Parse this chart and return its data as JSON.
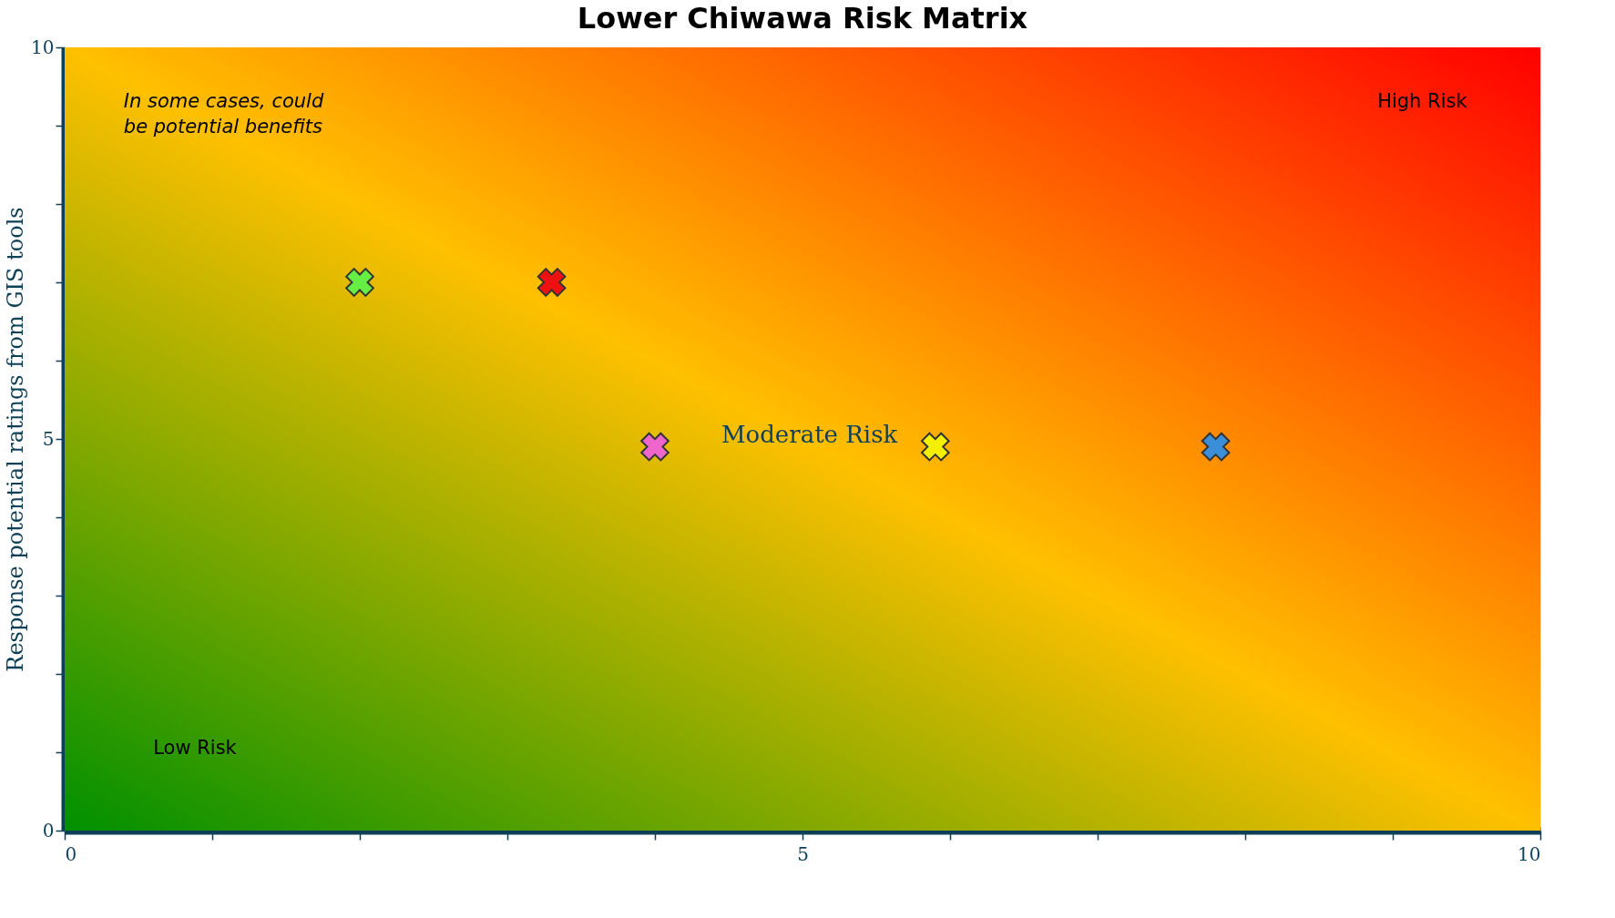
{
  "chart_data": {
    "type": "scatter",
    "title": "Lower Chiwawa Risk Matrix",
    "ylabel": "Response potential ratings from GIS tools",
    "x": [
      2.0,
      3.3,
      4.0,
      5.9,
      7.8
    ],
    "values": [
      7.0,
      7.0,
      4.9,
      4.9,
      4.9
    ],
    "colors": [
      "#66ee44",
      "#ee1111",
      "#ee66cc",
      "#f4f000",
      "#3b8ed8"
    ],
    "marker": "cross",
    "xlim": [
      0,
      10
    ],
    "ylim": [
      0,
      10
    ],
    "xticks": [
      0,
      {
        "value": 1,
        "label": null
      },
      {
        "value": 2,
        "label": null
      },
      {
        "value": 3,
        "label": null
      },
      {
        "value": 4,
        "label": null
      },
      5,
      {
        "value": 6,
        "label": null
      },
      {
        "value": 7,
        "label": null
      },
      {
        "value": 8,
        "label": null
      },
      {
        "value": 9,
        "label": null
      },
      10
    ],
    "yticks": [
      0,
      {
        "value": 1,
        "label": null
      },
      {
        "value": 2,
        "label": null
      },
      {
        "value": 3,
        "label": null
      },
      {
        "value": 4,
        "label": null
      },
      5,
      {
        "value": 6,
        "label": null
      },
      {
        "value": 7,
        "label": null
      },
      {
        "value": 8,
        "label": null
      },
      {
        "value": 9,
        "label": null
      },
      10
    ],
    "grid": false,
    "legend": false,
    "annotations": [
      "In some cases, could be potential benefits",
      "High Risk",
      "Low Risk",
      "Moderate Risk"
    ]
  }
}
